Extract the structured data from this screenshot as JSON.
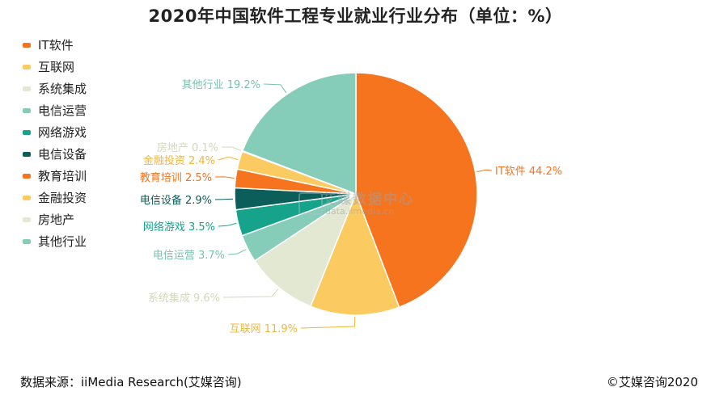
{
  "title": "2020年中国软件工程专业就业行业分布（单位：%）",
  "footer": {
    "source": "数据来源：iiMedia Research(艾媒咨询)",
    "copyright": "©艾媒咨询2020"
  },
  "watermark": {
    "main": "艾媒数据中心",
    "sub": "data.iimedia.cn"
  },
  "chart_data": {
    "type": "pie",
    "title": "2020年中国软件工程专业就业行业分布（单位：%）",
    "legend_position": "left",
    "slices": [
      {
        "name": "IT软件",
        "value": 44.2,
        "label": "IT软件 44.2%",
        "color": "#F6741D"
      },
      {
        "name": "互联网",
        "value": 11.9,
        "label": "互联网 11.9%",
        "color": "#FBCB62"
      },
      {
        "name": "系统集成",
        "value": 9.6,
        "label": "系统集成 9.6%",
        "color": "#E3E8D2"
      },
      {
        "name": "电信运营",
        "value": 3.7,
        "label": "电信运营 3.7%",
        "color": "#86CDB9"
      },
      {
        "name": "网络游戏",
        "value": 3.5,
        "label": "网络游戏 3.5%",
        "color": "#15A38B"
      },
      {
        "name": "电信设备",
        "value": 2.9,
        "label": "电信设备 2.9%",
        "color": "#0C5E5A"
      },
      {
        "name": "教育培训",
        "value": 2.5,
        "label": "教育培训 2.5%",
        "color": "#F6741D"
      },
      {
        "name": "金融投资",
        "value": 2.4,
        "label": "金融投资 2.4%",
        "color": "#FBCB62"
      },
      {
        "name": "房地产",
        "value": 0.1,
        "label": "房地产 0.1%",
        "color": "#E3E8D2"
      },
      {
        "name": "其他行业",
        "value": 19.2,
        "label": "其他行业 19.2%",
        "color": "#86CDB9"
      }
    ]
  }
}
